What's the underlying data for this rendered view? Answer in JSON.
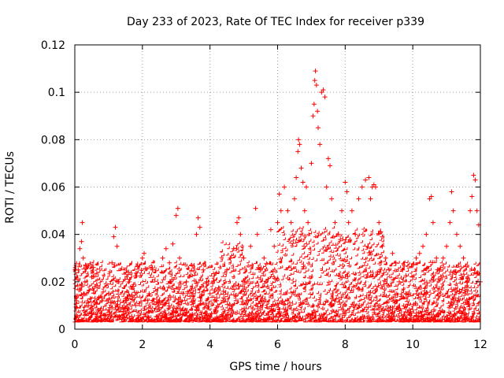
{
  "chart_data": {
    "type": "scatter",
    "title": "Day 233 of 2023, Rate Of TEC Index for receiver p339",
    "xlabel": "GPS time / hours",
    "ylabel": "ROTI / TECUs",
    "xlim": [
      0,
      12
    ],
    "ylim": [
      0,
      0.12
    ],
    "xticks": [
      0,
      2,
      4,
      6,
      8,
      10,
      12
    ],
    "yticks": [
      0,
      0.02,
      0.04,
      0.06,
      0.08,
      0.1,
      0.12
    ],
    "xtick_labels": [
      "0",
      "2",
      "4",
      "6",
      "8",
      "10",
      "12"
    ],
    "ytick_labels": [
      "0",
      "0.02",
      "0.04",
      "0.06",
      "0.08",
      "0.1",
      "0.12"
    ],
    "grid": true,
    "marker": "plus",
    "color": "#ff0000",
    "series": [
      {
        "name": "ROTI",
        "points": [
          [
            0.05,
            0.012
          ],
          [
            0.1,
            0.025
          ],
          [
            0.15,
            0.034
          ],
          [
            0.2,
            0.037
          ],
          [
            0.22,
            0.045
          ],
          [
            0.25,
            0.03
          ],
          [
            0.3,
            0.02
          ],
          [
            0.35,
            0.015
          ],
          [
            0.4,
            0.01
          ],
          [
            0.5,
            0.022
          ],
          [
            0.55,
            0.026
          ],
          [
            0.6,
            0.018
          ],
          [
            0.7,
            0.008
          ],
          [
            0.8,
            0.012
          ],
          [
            1.0,
            0.015
          ],
          [
            1.1,
            0.028
          ],
          [
            1.15,
            0.039
          ],
          [
            1.2,
            0.043
          ],
          [
            1.25,
            0.035
          ],
          [
            1.3,
            0.02
          ],
          [
            1.5,
            0.012
          ],
          [
            1.6,
            0.02
          ],
          [
            1.8,
            0.01
          ],
          [
            2.0,
            0.03
          ],
          [
            2.05,
            0.032
          ],
          [
            2.2,
            0.015
          ],
          [
            2.3,
            0.025
          ],
          [
            2.5,
            0.012
          ],
          [
            2.6,
            0.03
          ],
          [
            2.7,
            0.034
          ],
          [
            2.8,
            0.028
          ],
          [
            2.9,
            0.036
          ],
          [
            3.0,
            0.048
          ],
          [
            3.05,
            0.051
          ],
          [
            3.1,
            0.03
          ],
          [
            3.2,
            0.015
          ],
          [
            3.3,
            0.02
          ],
          [
            3.5,
            0.012
          ],
          [
            3.6,
            0.04
          ],
          [
            3.65,
            0.047
          ],
          [
            3.7,
            0.043
          ],
          [
            3.8,
            0.025
          ],
          [
            3.9,
            0.02
          ],
          [
            4.0,
            0.015
          ],
          [
            4.2,
            0.012
          ],
          [
            4.4,
            0.016
          ],
          [
            4.5,
            0.025
          ],
          [
            4.6,
            0.03
          ],
          [
            4.7,
            0.034
          ],
          [
            4.8,
            0.045
          ],
          [
            4.85,
            0.047
          ],
          [
            4.9,
            0.04
          ],
          [
            5.0,
            0.03
          ],
          [
            5.1,
            0.02
          ],
          [
            5.2,
            0.035
          ],
          [
            5.35,
            0.051
          ],
          [
            5.4,
            0.04
          ],
          [
            5.5,
            0.025
          ],
          [
            5.6,
            0.03
          ],
          [
            5.8,
            0.042
          ],
          [
            5.9,
            0.035
          ],
          [
            6.0,
            0.045
          ],
          [
            6.05,
            0.057
          ],
          [
            6.1,
            0.05
          ],
          [
            6.2,
            0.06
          ],
          [
            6.3,
            0.05
          ],
          [
            6.4,
            0.045
          ],
          [
            6.5,
            0.055
          ],
          [
            6.55,
            0.064
          ],
          [
            6.6,
            0.075
          ],
          [
            6.62,
            0.08
          ],
          [
            6.65,
            0.078
          ],
          [
            6.7,
            0.068
          ],
          [
            6.75,
            0.062
          ],
          [
            6.8,
            0.05
          ],
          [
            6.85,
            0.06
          ],
          [
            6.9,
            0.045
          ],
          [
            7.0,
            0.07
          ],
          [
            7.05,
            0.09
          ],
          [
            7.08,
            0.095
          ],
          [
            7.1,
            0.105
          ],
          [
            7.12,
            0.109
          ],
          [
            7.15,
            0.103
          ],
          [
            7.18,
            0.092
          ],
          [
            7.2,
            0.085
          ],
          [
            7.25,
            0.078
          ],
          [
            7.3,
            0.1
          ],
          [
            7.35,
            0.101
          ],
          [
            7.4,
            0.098
          ],
          [
            7.45,
            0.06
          ],
          [
            7.5,
            0.072
          ],
          [
            7.55,
            0.069
          ],
          [
            7.6,
            0.055
          ],
          [
            7.7,
            0.045
          ],
          [
            7.8,
            0.04
          ],
          [
            7.9,
            0.05
          ],
          [
            8.0,
            0.062
          ],
          [
            8.05,
            0.058
          ],
          [
            8.1,
            0.045
          ],
          [
            8.2,
            0.05
          ],
          [
            8.3,
            0.04
          ],
          [
            8.4,
            0.055
          ],
          [
            8.5,
            0.06
          ],
          [
            8.6,
            0.063
          ],
          [
            8.7,
            0.064
          ],
          [
            8.75,
            0.055
          ],
          [
            8.8,
            0.06
          ],
          [
            8.85,
            0.061
          ],
          [
            8.9,
            0.06
          ],
          [
            9.0,
            0.045
          ],
          [
            9.05,
            0.041
          ],
          [
            9.1,
            0.035
          ],
          [
            9.2,
            0.03
          ],
          [
            9.3,
            0.025
          ],
          [
            9.4,
            0.032
          ],
          [
            9.5,
            0.028
          ],
          [
            9.6,
            0.02
          ],
          [
            9.7,
            0.025
          ],
          [
            9.8,
            0.015
          ],
          [
            10.0,
            0.022
          ],
          [
            10.1,
            0.03
          ],
          [
            10.2,
            0.032
          ],
          [
            10.3,
            0.035
          ],
          [
            10.4,
            0.04
          ],
          [
            10.5,
            0.055
          ],
          [
            10.55,
            0.056
          ],
          [
            10.6,
            0.045
          ],
          [
            10.7,
            0.03
          ],
          [
            10.8,
            0.025
          ],
          [
            10.9,
            0.03
          ],
          [
            11.0,
            0.035
          ],
          [
            11.1,
            0.045
          ],
          [
            11.15,
            0.058
          ],
          [
            11.2,
            0.05
          ],
          [
            11.3,
            0.04
          ],
          [
            11.4,
            0.035
          ],
          [
            11.5,
            0.03
          ],
          [
            11.6,
            0.02
          ],
          [
            11.7,
            0.05
          ],
          [
            11.75,
            0.056
          ],
          [
            11.8,
            0.065
          ],
          [
            11.85,
            0.063
          ],
          [
            11.9,
            0.05
          ],
          [
            11.95,
            0.044
          ],
          [
            12.0,
            0.02
          ]
        ]
      }
    ]
  }
}
